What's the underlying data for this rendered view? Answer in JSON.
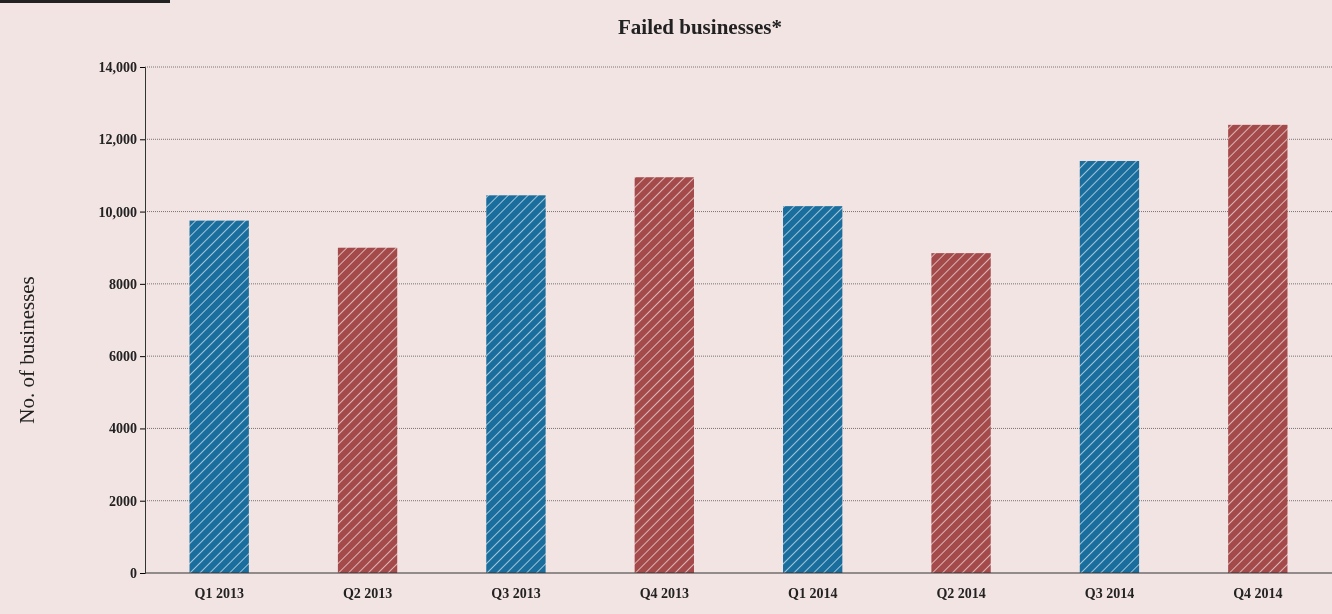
{
  "chart_data": {
    "type": "bar",
    "title": "Failed businesses*",
    "ylabel": "No. of businesses",
    "categories": [
      "Q1 2013",
      "Q2 2013",
      "Q3 2013",
      "Q4 2013",
      "Q1 2014",
      "Q2 2014",
      "Q3 2014",
      "Q4 2014"
    ],
    "values": [
      9750,
      9000,
      10450,
      10950,
      10150,
      8850,
      11400,
      12400
    ],
    "colors": [
      "#1a6e9e",
      "#a54a4a",
      "#1a6e9e",
      "#a54a4a",
      "#1a6e9e",
      "#a54a4a",
      "#1a6e9e",
      "#a54a4a"
    ],
    "ylim": [
      0,
      14000
    ],
    "yticks": [
      0,
      2000,
      4000,
      6000,
      8000,
      {
        "value": 10000,
        "label": "10,000"
      },
      {
        "value": 12000,
        "label": "12,000"
      },
      {
        "value": 14000,
        "label": "14,000"
      }
    ],
    "grid": "y"
  }
}
